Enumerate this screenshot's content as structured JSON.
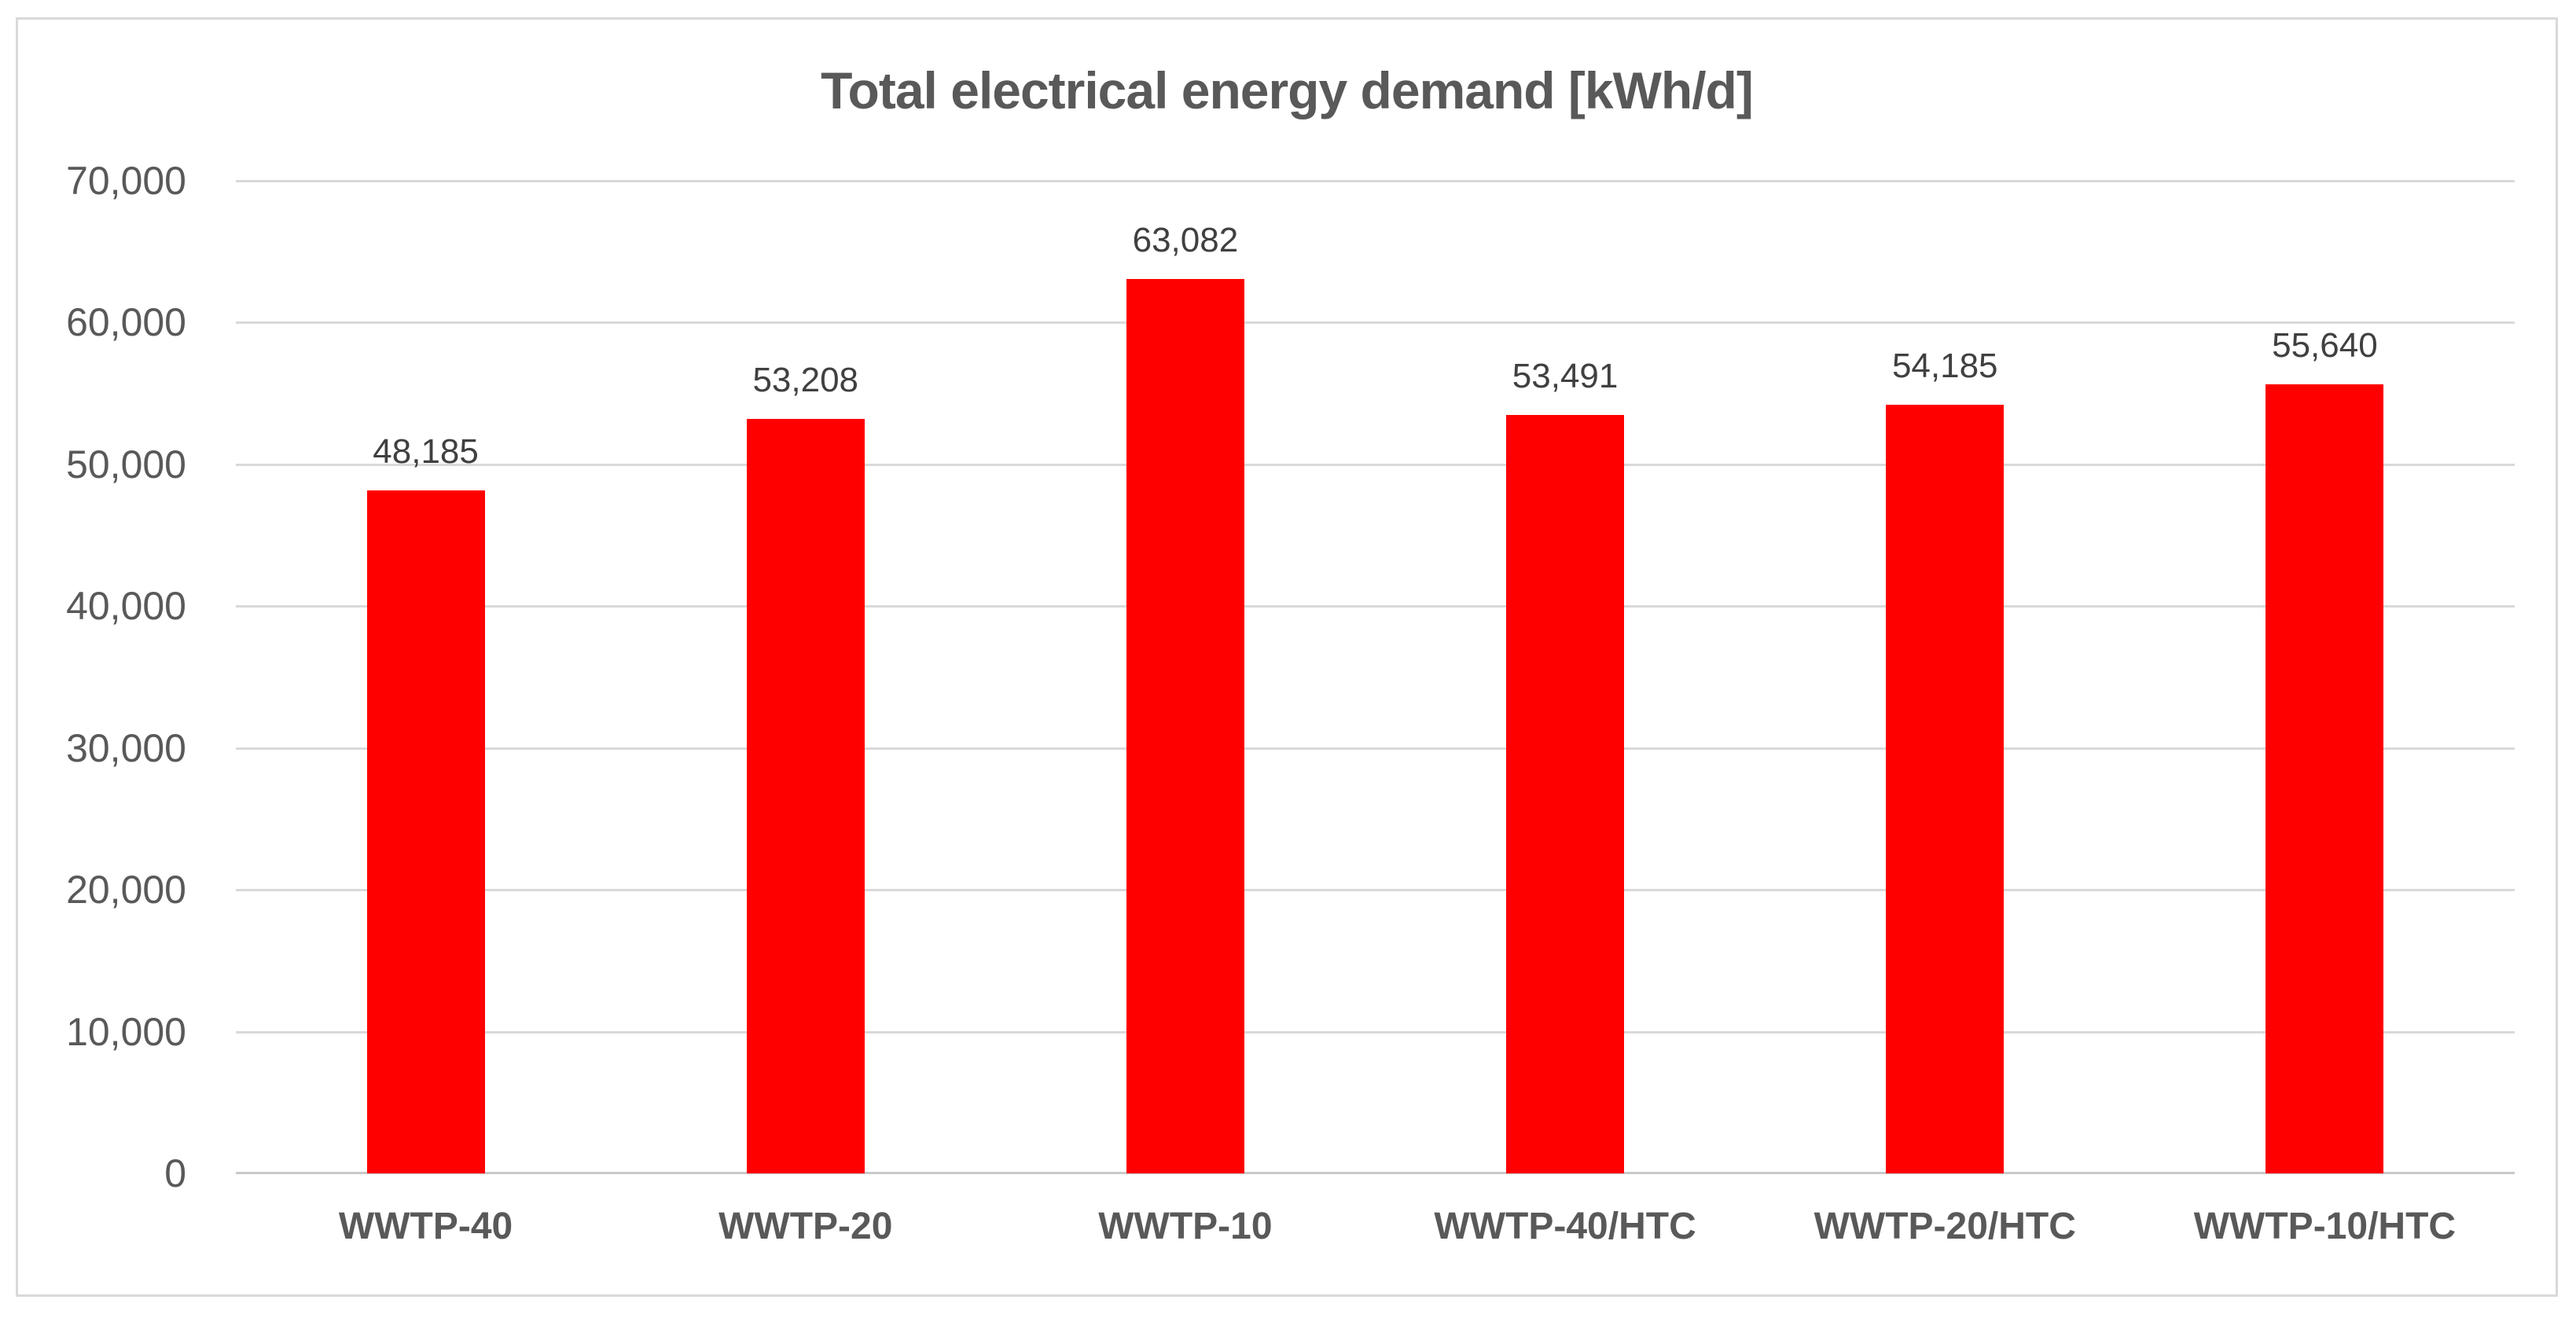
{
  "chart_data": {
    "type": "bar",
    "title": "Total electrical energy demand [kWh/d]",
    "categories": [
      "WWTP-40",
      "WWTP-20",
      "WWTP-10",
      "WWTP-40/HTC",
      "WWTP-20/HTC",
      "WWTP-10/HTC"
    ],
    "values": [
      48185,
      53208,
      63082,
      53491,
      54185,
      55640
    ],
    "value_labels": [
      "48,185",
      "53,208",
      "63,082",
      "53,491",
      "54,185",
      "55,640"
    ],
    "xlabel": "",
    "ylabel": "",
    "ylim": [
      0,
      70000
    ],
    "y_ticks": [
      0,
      10000,
      20000,
      30000,
      40000,
      50000,
      60000,
      70000
    ],
    "y_tick_labels": [
      "0",
      "10,000",
      "20,000",
      "30,000",
      "40,000",
      "50,000",
      "60,000",
      "70,000"
    ],
    "grid": true,
    "legend": false,
    "colors": {
      "bar": "#FF0000",
      "title_text": "#595959",
      "axis_text": "#595959",
      "data_label_text": "#404040",
      "gridline": "#D9D9D9",
      "axis_line": "#C9C9C9",
      "frame_border": "#D9D9D9",
      "background": "#FFFFFF"
    }
  }
}
